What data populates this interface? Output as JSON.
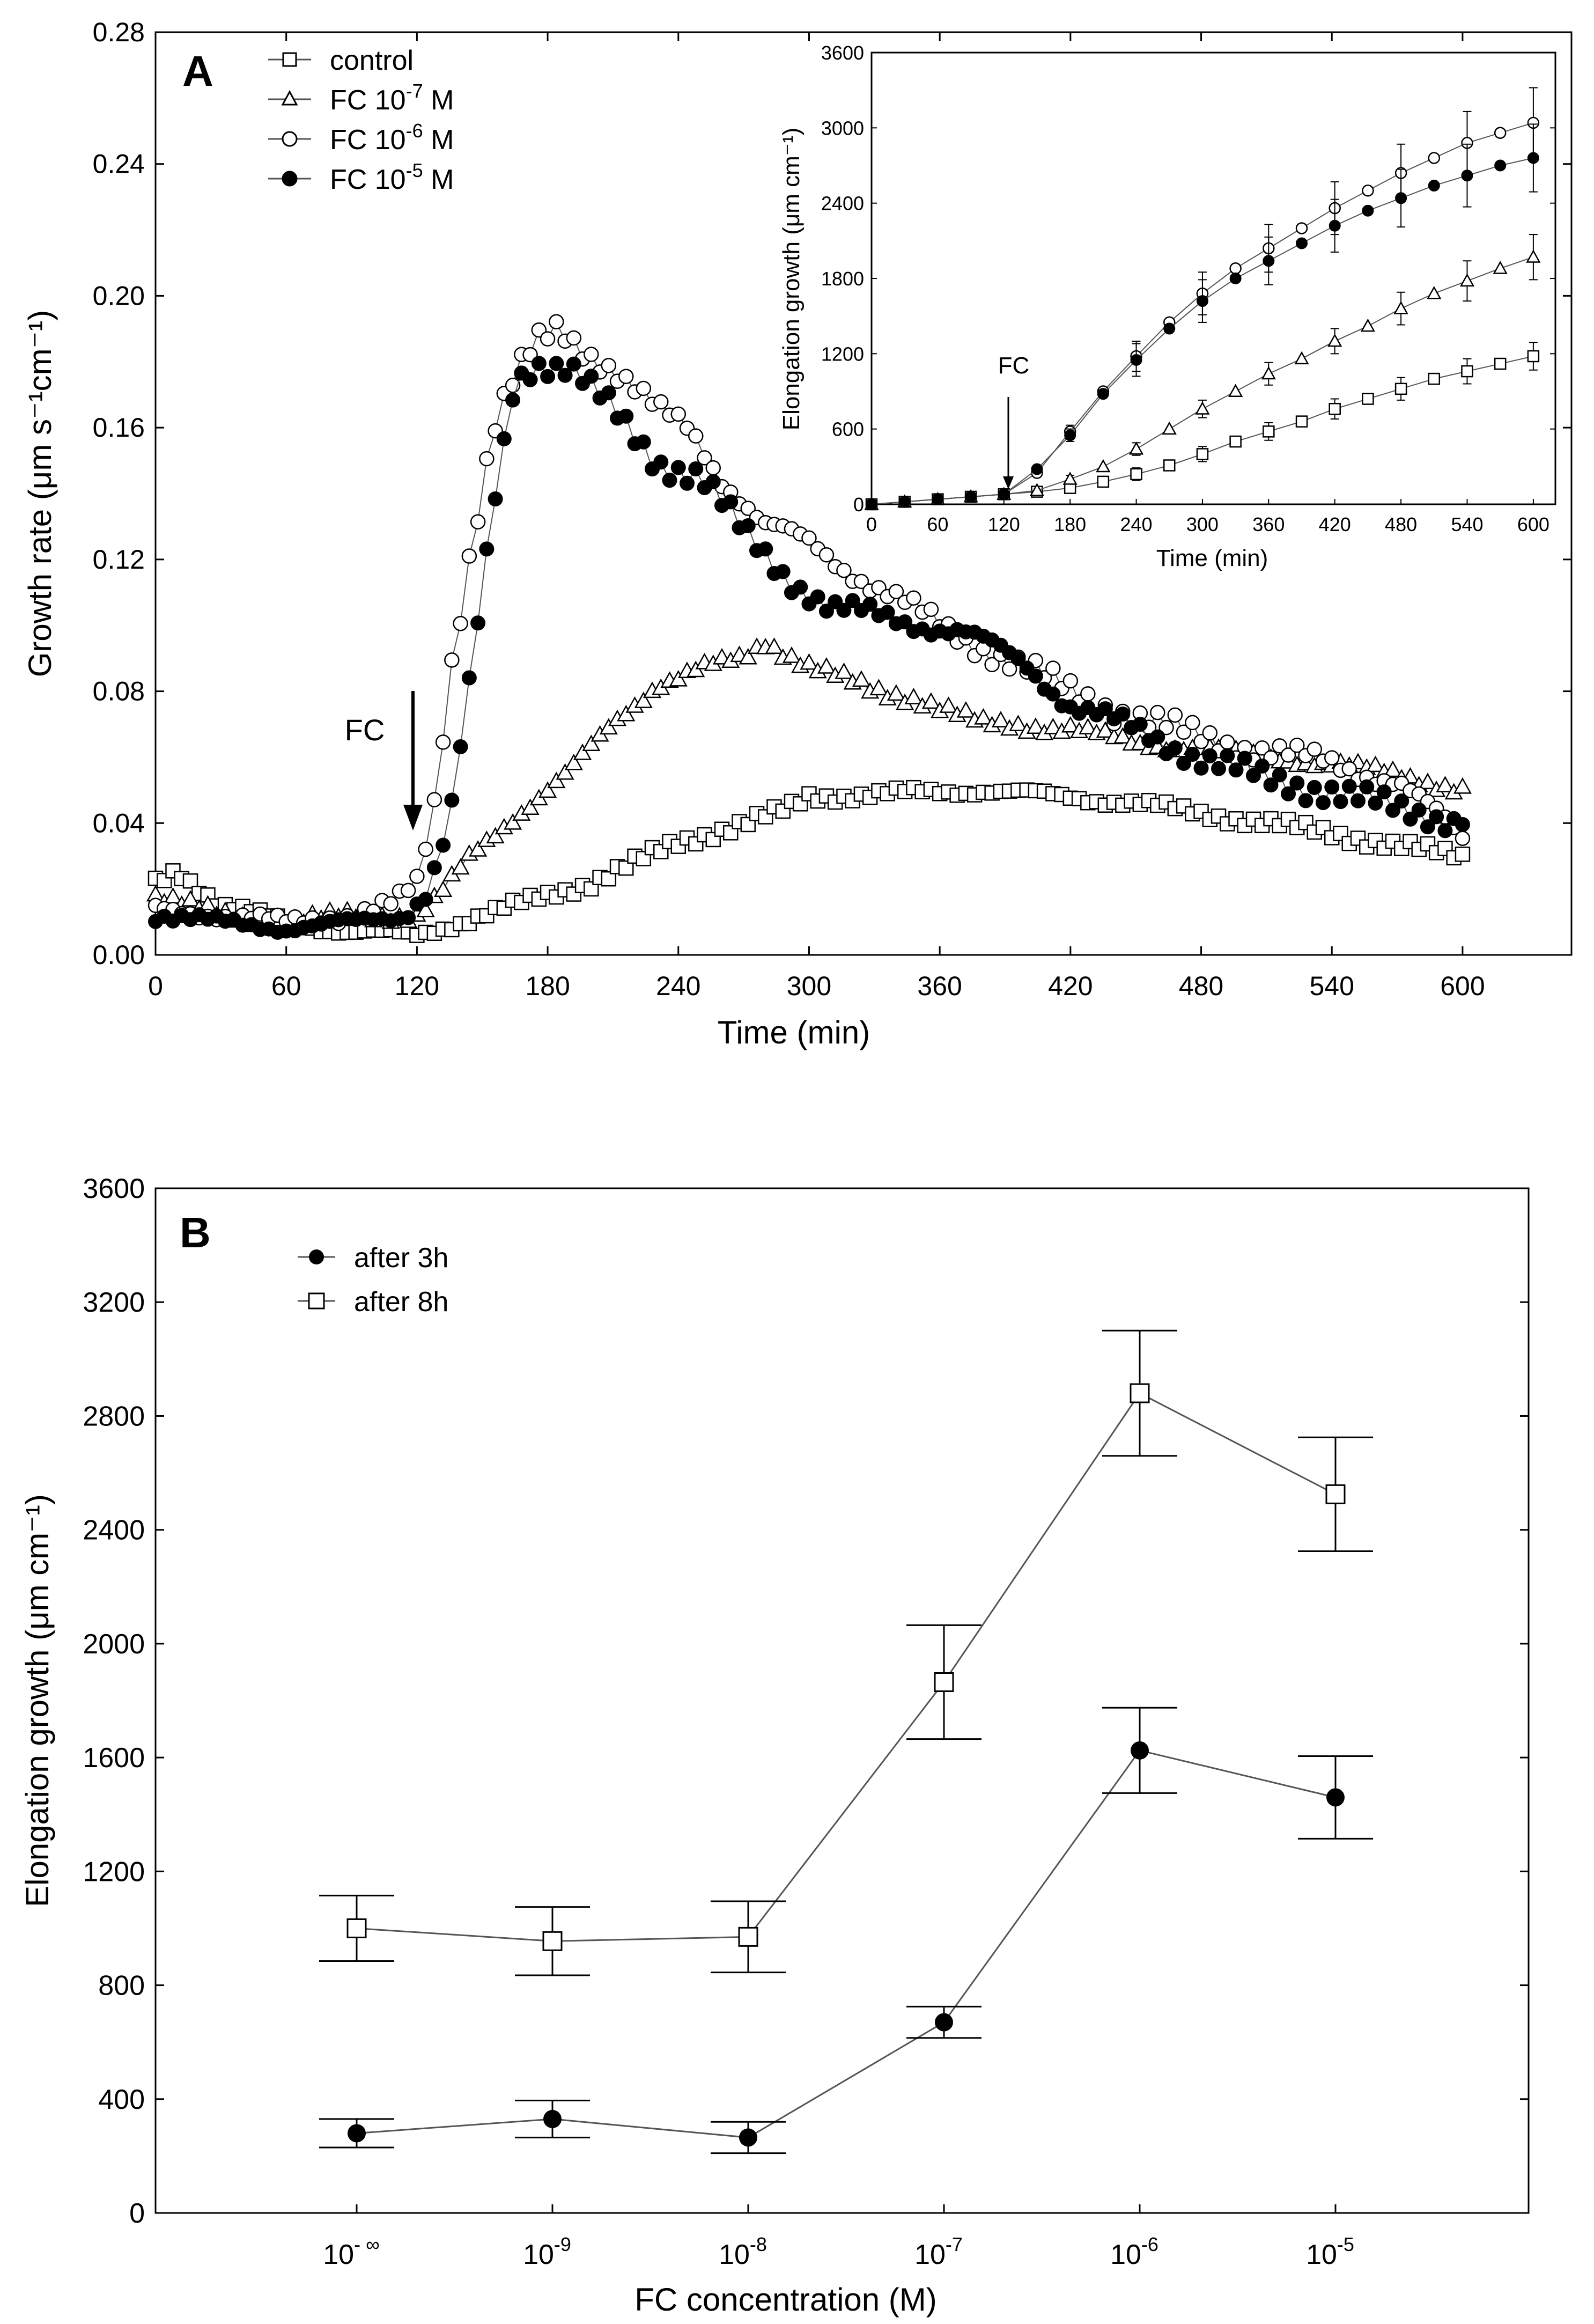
{
  "colors": {
    "axis": "#000000",
    "line": "#555555",
    "marker_fill_open": "#ffffff",
    "marker_fill_solid": "#000000"
  },
  "chart_data": [
    {
      "panel": "A",
      "type": "scatter",
      "xlabel": "Time (min)",
      "ylabel": "Growth rate (μm s⁻¹cm⁻¹)",
      "xlim": [
        0,
        650
      ],
      "ylim": [
        0,
        0.28
      ],
      "xticks": [
        0,
        60,
        120,
        180,
        240,
        300,
        360,
        420,
        480,
        540,
        600
      ],
      "yticks": [
        0.0,
        0.04,
        0.08,
        0.12,
        0.16,
        0.2,
        0.24,
        0.28
      ],
      "ytick_labels": [
        "0.00",
        "0.04",
        "0.08",
        "0.12",
        "0.16",
        "0.20",
        "0.24",
        "0.28"
      ],
      "legend_position": "top-left",
      "annotation": {
        "text": "FC",
        "x": 120,
        "arrow_from_y": 0.08,
        "arrow_to_y": 0.038
      },
      "series": [
        {
          "name": "control",
          "name_base": "control",
          "name_sup": "",
          "name_tail": "",
          "marker": "square-open",
          "keyframes": [
            [
              0,
              0.022
            ],
            [
              10,
              0.026
            ],
            [
              30,
              0.015
            ],
            [
              60,
              0.01
            ],
            [
              90,
              0.007
            ],
            [
              120,
              0.006
            ],
            [
              140,
              0.01
            ],
            [
              170,
              0.016
            ],
            [
              200,
              0.022
            ],
            [
              240,
              0.034
            ],
            [
              270,
              0.04
            ],
            [
              290,
              0.044
            ],
            [
              300,
              0.048
            ],
            [
              340,
              0.049
            ],
            [
              380,
              0.05
            ],
            [
              420,
              0.048
            ],
            [
              450,
              0.046
            ],
            [
              480,
              0.043
            ],
            [
              510,
              0.04
            ],
            [
              540,
              0.037
            ],
            [
              570,
              0.033
            ],
            [
              600,
              0.03
            ]
          ]
        },
        {
          "name": "FC 10-7 M",
          "name_base": "FC 10",
          "name_sup": "-7",
          "name_tail": " M",
          "marker": "triangle-open",
          "keyframes": [
            [
              0,
              0.018
            ],
            [
              30,
              0.012
            ],
            [
              60,
              0.01
            ],
            [
              90,
              0.012
            ],
            [
              120,
              0.012
            ],
            [
              130,
              0.018
            ],
            [
              145,
              0.03
            ],
            [
              165,
              0.042
            ],
            [
              190,
              0.056
            ],
            [
              210,
              0.07
            ],
            [
              230,
              0.082
            ],
            [
              250,
              0.087
            ],
            [
              270,
              0.09
            ],
            [
              280,
              0.095
            ],
            [
              300,
              0.088
            ],
            [
              330,
              0.08
            ],
            [
              350,
              0.078
            ],
            [
              380,
              0.07
            ],
            [
              420,
              0.069
            ],
            [
              450,
              0.064
            ],
            [
              480,
              0.063
            ],
            [
              510,
              0.06
            ],
            [
              540,
              0.058
            ],
            [
              570,
              0.055
            ],
            [
              600,
              0.05
            ]
          ]
        },
        {
          "name": "FC 10-6 M",
          "name_base": "FC 10",
          "name_sup": "-6",
          "name_tail": " M",
          "marker": "circle-open",
          "keyframes": [
            [
              0,
              0.014
            ],
            [
              30,
              0.012
            ],
            [
              60,
              0.01
            ],
            [
              90,
              0.012
            ],
            [
              110,
              0.016
            ],
            [
              120,
              0.022
            ],
            [
              128,
              0.045
            ],
            [
              135,
              0.085
            ],
            [
              145,
              0.125
            ],
            [
              155,
              0.16
            ],
            [
              165,
              0.175
            ],
            [
              175,
              0.185
            ],
            [
              185,
              0.19
            ],
            [
              195,
              0.185
            ],
            [
              210,
              0.178
            ],
            [
              230,
              0.165
            ],
            [
              245,
              0.16
            ],
            [
              260,
              0.145
            ],
            [
              280,
              0.13
            ],
            [
              300,
              0.125
            ],
            [
              330,
              0.112
            ],
            [
              360,
              0.1
            ],
            [
              390,
              0.09
            ],
            [
              420,
              0.08
            ],
            [
              450,
              0.072
            ],
            [
              480,
              0.066
            ],
            [
              510,
              0.062
            ],
            [
              540,
              0.058
            ],
            [
              570,
              0.053
            ],
            [
              600,
              0.035
            ]
          ]
        },
        {
          "name": "FC 10-5 M",
          "name_base": "FC 10",
          "name_sup": "-5",
          "name_tail": " M",
          "marker": "circle-filled",
          "keyframes": [
            [
              0,
              0.012
            ],
            [
              30,
              0.01
            ],
            [
              60,
              0.008
            ],
            [
              90,
              0.01
            ],
            [
              115,
              0.012
            ],
            [
              125,
              0.02
            ],
            [
              135,
              0.04
            ],
            [
              145,
              0.085
            ],
            [
              155,
              0.135
            ],
            [
              165,
              0.175
            ],
            [
              175,
              0.18
            ],
            [
              190,
              0.178
            ],
            [
              210,
              0.165
            ],
            [
              230,
              0.15
            ],
            [
              250,
              0.145
            ],
            [
              270,
              0.128
            ],
            [
              290,
              0.115
            ],
            [
              310,
              0.105
            ],
            [
              340,
              0.102
            ],
            [
              370,
              0.098
            ],
            [
              400,
              0.088
            ],
            [
              420,
              0.076
            ],
            [
              450,
              0.068
            ],
            [
              480,
              0.06
            ],
            [
              510,
              0.053
            ],
            [
              540,
              0.05
            ],
            [
              570,
              0.044
            ],
            [
              600,
              0.041
            ]
          ]
        }
      ],
      "inset": {
        "type": "line",
        "xlabel": "Time (min)",
        "ylabel": "Elongation growth (μm cm⁻¹)",
        "xlim": [
          0,
          620
        ],
        "ylim": [
          0,
          3600
        ],
        "xticks": [
          0,
          60,
          120,
          180,
          240,
          300,
          360,
          420,
          480,
          540,
          600
        ],
        "yticks": [
          0,
          600,
          1200,
          1800,
          2400,
          3000,
          3600
        ],
        "annotation": {
          "text": "FC",
          "x": 120,
          "arrow_from_y": 700,
          "arrow_to_y": 130
        },
        "x": [
          0,
          30,
          60,
          90,
          120,
          150,
          180,
          210,
          240,
          270,
          300,
          330,
          360,
          390,
          420,
          450,
          480,
          510,
          540,
          570,
          600
        ],
        "series": [
          {
            "name": "control",
            "marker": "square-open",
            "values": [
              0,
              20,
              40,
              60,
              80,
              100,
              130,
              180,
              240,
              310,
              400,
              500,
              580,
              660,
              760,
              840,
              920,
              1000,
              1060,
              1120,
              1180
            ],
            "errors": [
              0,
              0,
              0,
              0,
              0,
              20,
              30,
              40,
              50,
              60,
              60,
              70,
              70,
              70,
              80,
              80,
              90,
              90,
              100,
              100,
              110
            ]
          },
          {
            "name": "FC 10-7 M",
            "marker": "triangle-open",
            "values": [
              0,
              20,
              40,
              60,
              80,
              110,
              200,
              300,
              440,
              600,
              760,
              900,
              1040,
              1160,
              1300,
              1420,
              1560,
              1680,
              1780,
              1880,
              1970
            ],
            "errors": [
              0,
              0,
              0,
              0,
              0,
              20,
              30,
              40,
              50,
              60,
              70,
              80,
              90,
              90,
              100,
              110,
              130,
              140,
              160,
              170,
              180
            ]
          },
          {
            "name": "FC 10-6 M",
            "marker": "circle-open",
            "values": [
              0,
              20,
              40,
              60,
              80,
              250,
              580,
              900,
              1180,
              1450,
              1680,
              1880,
              2040,
              2200,
              2360,
              2500,
              2640,
              2760,
              2880,
              2960,
              3040
            ],
            "errors": [
              0,
              0,
              0,
              0,
              0,
              30,
              50,
              60,
              120,
              150,
              170,
              180,
              190,
              200,
              210,
              220,
              230,
              240,
              250,
              260,
              280
            ]
          },
          {
            "name": "FC 10-5 M",
            "marker": "circle-filled",
            "values": [
              0,
              20,
              40,
              60,
              80,
              280,
              550,
              880,
              1150,
              1400,
              1620,
              1800,
              1940,
              2080,
              2220,
              2340,
              2440,
              2540,
              2620,
              2700,
              2760
            ],
            "errors": [
              0,
              0,
              0,
              0,
              0,
              30,
              50,
              60,
              130,
              150,
              170,
              180,
              190,
              200,
              210,
              220,
              230,
              240,
              250,
              260,
              270
            ]
          }
        ]
      }
    },
    {
      "panel": "B",
      "type": "line",
      "xlabel": "FC concentration (M)",
      "ylabel": "Elongation growth (μm cm⁻¹)",
      "ylim": [
        0,
        3600
      ],
      "yticks": [
        0,
        400,
        800,
        1200,
        1600,
        2000,
        2400,
        2800,
        3200,
        3600
      ],
      "categories": [
        "10-∞",
        "10-9",
        "10-8",
        "10-7",
        "10-6",
        "10-5"
      ],
      "category_base": "10",
      "category_exponents": [
        "- ∞",
        "-9",
        "-8",
        "-7",
        "-6",
        "-5"
      ],
      "legend_position": "top-left",
      "series": [
        {
          "name": "after 3h",
          "marker": "circle-filled",
          "values": [
            280,
            330,
            265,
            670,
            1625,
            1460
          ],
          "errors": [
            50,
            65,
            55,
            55,
            150,
            145
          ]
        },
        {
          "name": "after 8h",
          "marker": "square-open",
          "values": [
            1000,
            955,
            970,
            1865,
            2880,
            2525
          ],
          "errors": [
            115,
            120,
            125,
            200,
            220,
            200
          ]
        }
      ]
    }
  ]
}
